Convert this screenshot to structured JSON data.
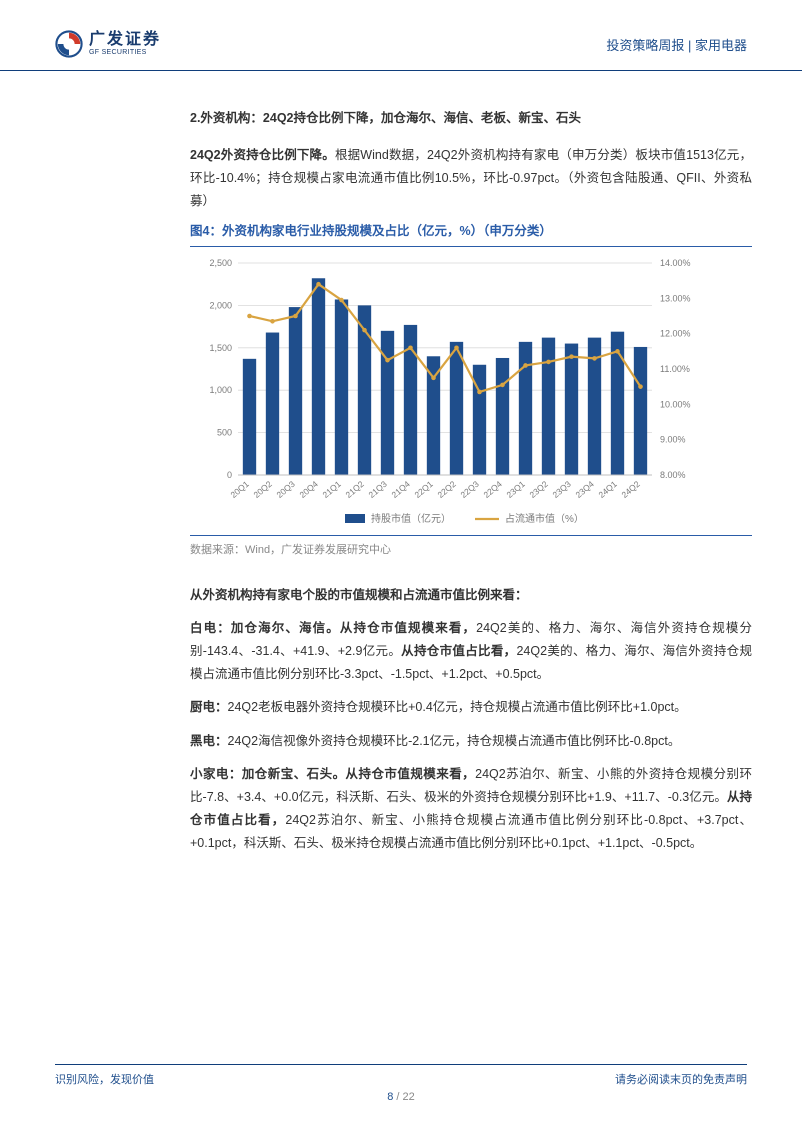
{
  "header": {
    "logo_cn": "广发证券",
    "logo_en": "GF SECURITIES",
    "right_text": "投资策略周报 | 家用电器"
  },
  "section_title": "2.外资机构：24Q2持仓比例下降，加仓海尔、海信、老板、新宝、石头",
  "intro_para": {
    "lead": "24Q2外资持仓比例下降。",
    "body": "根据Wind数据，24Q2外资机构持有家电（申万分类）板块市值1513亿元，环比-10.4%；持仓规模占家电流通市值比例10.5%，环比-0.97pct。（外资包含陆股通、QFII、外资私募）"
  },
  "figure": {
    "caption": "图4：外资机构家电行业持股规模及占比（亿元，%）（申万分类）",
    "type": "bar+line",
    "categories": [
      "20Q1",
      "20Q2",
      "20Q3",
      "20Q4",
      "21Q1",
      "21Q2",
      "21Q3",
      "21Q4",
      "22Q1",
      "22Q2",
      "22Q3",
      "22Q4",
      "23Q1",
      "23Q2",
      "23Q3",
      "23Q4",
      "24Q1",
      "24Q2"
    ],
    "bar_values": [
      1370,
      1680,
      1980,
      2320,
      2070,
      2000,
      1700,
      1770,
      1400,
      1570,
      1300,
      1380,
      1570,
      1620,
      1550,
      1620,
      1690,
      1510
    ],
    "line_values_pct": [
      12.5,
      12.35,
      12.5,
      13.4,
      12.95,
      12.1,
      11.25,
      11.6,
      10.75,
      11.6,
      10.35,
      10.55,
      11.1,
      11.2,
      11.35,
      11.3,
      11.5,
      10.5
    ],
    "y_left": {
      "min": 0,
      "max": 2500,
      "step": 500
    },
    "y_right": {
      "min": 8.0,
      "max": 14.0,
      "step": 1.0
    },
    "bar_color": "#1f4e8c",
    "line_color": "#d9a441",
    "grid_color": "#d9d9d9",
    "axis_text_color": "#7b7b7b",
    "background_color": "#ffffff",
    "legend": {
      "bar_label": "持股市值（亿元）",
      "line_label": "占流通市值（%）"
    },
    "data_source": "数据来源：Wind，广发证券发展研究中心"
  },
  "body_title": "从外资机构持有家电个股的市值规模和占流通市值比例来看：",
  "paragraphs": [
    {
      "lead": "白电：加仓海尔、海信。从持仓市值规模来看，",
      "mid1": "24Q2美的、格力、海尔、海信外资持仓规模分别-143.4、-31.4、+41.9、+2.9亿元。",
      "bold2": "从持仓市值占比看，",
      "tail": "24Q2美的、格力、海尔、海信外资持仓规模占流通市值比例分别环比-3.3pct、-1.5pct、+1.2pct、+0.5pct。"
    },
    {
      "lead": "厨电：",
      "body": "24Q2老板电器外资持仓规模环比+0.4亿元，持仓规模占流通市值比例环比+1.0pct。"
    },
    {
      "lead": "黑电：",
      "body": "24Q2海信视像外资持仓规模环比-2.1亿元，持仓规模占流通市值比例环比-0.8pct。"
    },
    {
      "lead": "小家电：加仓新宝、石头。从持仓市值规模来看，",
      "mid1": "24Q2苏泊尔、新宝、小熊的外资持仓规模分别环比-7.8、+3.4、+0.0亿元，科沃斯、石头、极米的外资持仓规模分别环比+1.9、+11.7、-0.3亿元。",
      "bold2": "从持仓市值占比看，",
      "tail": "24Q2苏泊尔、新宝、小熊持仓规模占流通市值比例分别环比-0.8pct、+3.7pct、+0.1pct，科沃斯、石头、极米持仓规模占流通市值比例分别环比+0.1pct、+1.1pct、-0.5pct。"
    }
  ],
  "footer": {
    "left": "识别风险，发现价值",
    "right": "请务必阅读末页的免责声明",
    "page": "8",
    "total": " / 22"
  }
}
